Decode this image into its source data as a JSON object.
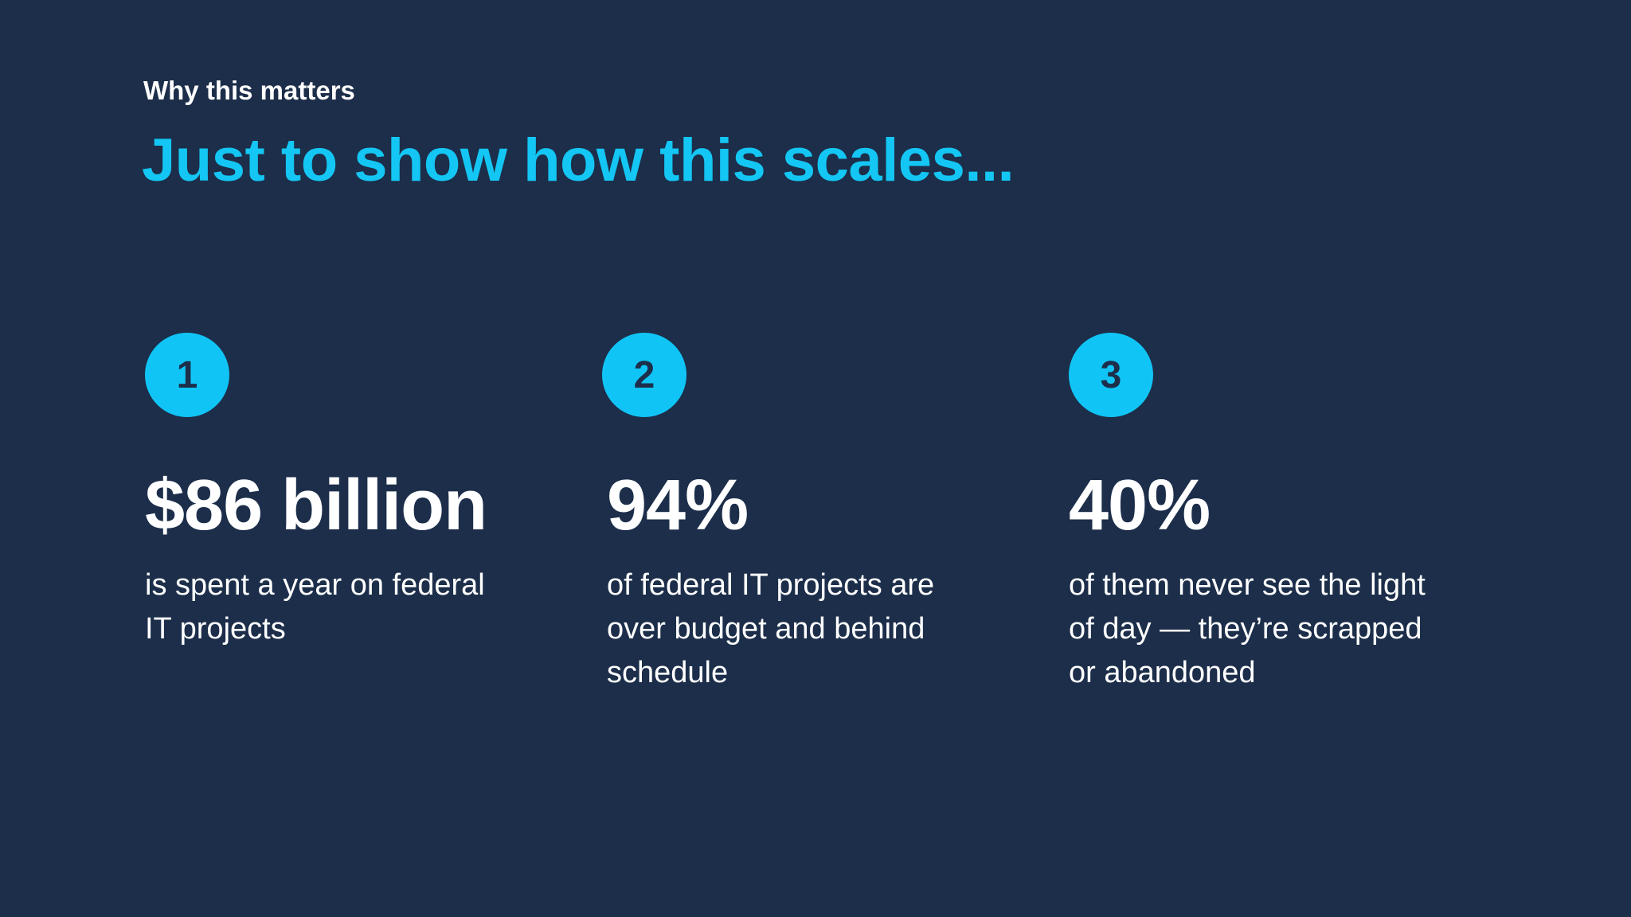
{
  "slide": {
    "eyebrow": "Why this matters",
    "title": "Just to show how this scales...",
    "stats": [
      {
        "number": "1",
        "figure": "$86 billion",
        "description": "is spent a year on federal IT projects"
      },
      {
        "number": "2",
        "figure": "94%",
        "description": "of federal IT projects are over budget and behind schedule"
      },
      {
        "number": "3",
        "figure": "40%",
        "description": "of them never see the light of day — they’re scrapped or abandoned"
      }
    ]
  },
  "colors": {
    "background": "#1c2e4a",
    "accent": "#14c6f3",
    "text": "#ffffff"
  }
}
